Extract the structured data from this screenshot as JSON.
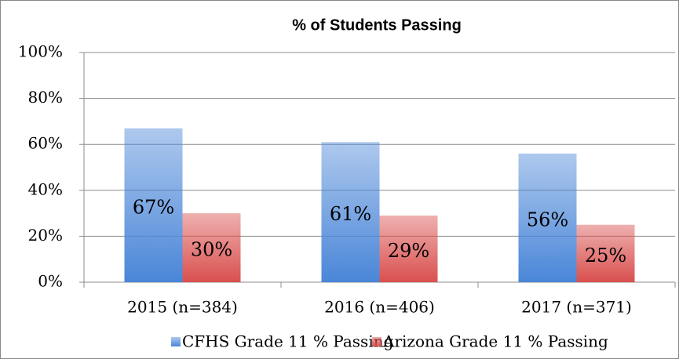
{
  "chart_data": {
    "type": "bar",
    "title": "% of Students Passing",
    "categories": [
      "2015 (n=384)",
      "2016 (n=406)",
      "2017 (n=371)"
    ],
    "series": [
      {
        "name": "CFHS Grade 11 % Passing",
        "color": "#4a86d8",
        "values": [
          67,
          61,
          56
        ],
        "value_labels": [
          "67%",
          "61%",
          "56%"
        ]
      },
      {
        "name": "Arizona Grade 11 % Passing",
        "color": "#d9504e",
        "values": [
          30,
          29,
          25
        ],
        "value_labels": [
          "30%",
          "29%",
          "25%"
        ]
      }
    ],
    "ylim": [
      0,
      100
    ],
    "yticks": [
      {
        "value": 0,
        "label": "0%"
      },
      {
        "value": 20,
        "label": "20%"
      },
      {
        "value": 40,
        "label": "40%"
      },
      {
        "value": 60,
        "label": "60%"
      },
      {
        "value": 80,
        "label": "80%"
      },
      {
        "value": 100,
        "label": "100%"
      }
    ],
    "grid": true,
    "legend": "bottom"
  }
}
